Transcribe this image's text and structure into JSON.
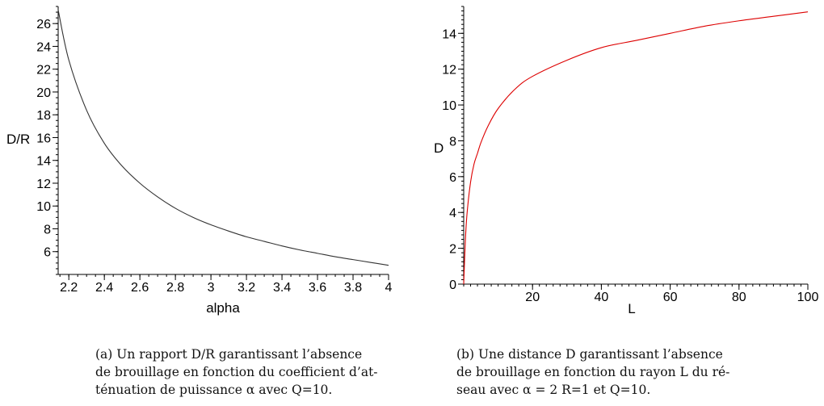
{
  "chart_data": [
    {
      "type": "line",
      "xlabel": "alpha",
      "ylabel": "D/R",
      "xlim": [
        2.14,
        4.0
      ],
      "ylim": [
        4.0,
        27.5
      ],
      "xticks": [
        {
          "v": 2.2,
          "label": "2.2"
        },
        {
          "v": 2.4,
          "label": "2.4"
        },
        {
          "v": 2.6,
          "label": "2.6"
        },
        {
          "v": 2.8,
          "label": "2.8"
        },
        {
          "v": 3.0,
          "label": "3"
        },
        {
          "v": 3.2,
          "label": "3.2"
        },
        {
          "v": 3.4,
          "label": "3.4"
        },
        {
          "v": 3.6,
          "label": "3.6"
        },
        {
          "v": 3.8,
          "label": "3.8"
        },
        {
          "v": 4.0,
          "label": "4"
        }
      ],
      "yticks": [
        {
          "v": 6,
          "label": "6"
        },
        {
          "v": 8,
          "label": "8"
        },
        {
          "v": 10,
          "label": "10"
        },
        {
          "v": 12,
          "label": "12"
        },
        {
          "v": 14,
          "label": "14"
        },
        {
          "v": 16,
          "label": "16"
        },
        {
          "v": 18,
          "label": "18"
        },
        {
          "v": 20,
          "label": "20"
        },
        {
          "v": 22,
          "label": "22"
        },
        {
          "v": 24,
          "label": "24"
        },
        {
          "v": 26,
          "label": "26"
        }
      ],
      "series": [
        {
          "color": "#333333",
          "x": [
            2.14,
            2.2,
            2.3,
            2.4,
            2.5,
            2.6,
            2.7,
            2.8,
            2.9,
            3.0,
            3.1,
            3.2,
            3.3,
            3.4,
            3.5,
            3.6,
            3.7,
            3.8,
            3.9,
            4.0
          ],
          "y": [
            27.2,
            22.8,
            18.4,
            15.5,
            13.5,
            12.0,
            10.8,
            9.8,
            9.0,
            8.35,
            7.8,
            7.3,
            6.9,
            6.5,
            6.15,
            5.85,
            5.55,
            5.3,
            5.05,
            4.8
          ]
        }
      ],
      "caption": [
        "(a) Un rapport D/R garantissant l’absence",
        "de brouillage en fonction du coefficient d’at-",
        "ténuation de puissance α avec Q=10."
      ]
    },
    {
      "type": "line",
      "xlabel": "L",
      "ylabel": "D",
      "xlim": [
        0,
        100
      ],
      "ylim": [
        0,
        15.5
      ],
      "xticks": [
        {
          "v": 20,
          "label": "20"
        },
        {
          "v": 40,
          "label": "40"
        },
        {
          "v": 60,
          "label": "60"
        },
        {
          "v": 80,
          "label": "80"
        },
        {
          "v": 100,
          "label": "100"
        }
      ],
      "yticks": [
        {
          "v": 0,
          "label": "0"
        },
        {
          "v": 2,
          "label": "2"
        },
        {
          "v": 4,
          "label": "4"
        },
        {
          "v": 6,
          "label": "6"
        },
        {
          "v": 8,
          "label": "8"
        },
        {
          "v": 10,
          "label": "10"
        },
        {
          "v": 12,
          "label": "12"
        },
        {
          "v": 14,
          "label": "14"
        }
      ],
      "series": [
        {
          "color": "#dd0000",
          "x": [
            0,
            0.5,
            1,
            2,
            3,
            4,
            5,
            7,
            10,
            15,
            20,
            30,
            40,
            50,
            60,
            70,
            80,
            90,
            100
          ],
          "y": [
            0,
            2.5,
            4.0,
            5.7,
            6.7,
            7.3,
            7.9,
            8.8,
            9.8,
            10.9,
            11.6,
            12.5,
            13.2,
            13.6,
            14.0,
            14.4,
            14.7,
            14.95,
            15.2
          ]
        }
      ],
      "caption": [
        "(b) Une distance D garantissant l’absence",
        "de brouillage en fonction du rayon L du ré-",
        "seau avec α = 2 R=1 et Q=10."
      ]
    }
  ]
}
